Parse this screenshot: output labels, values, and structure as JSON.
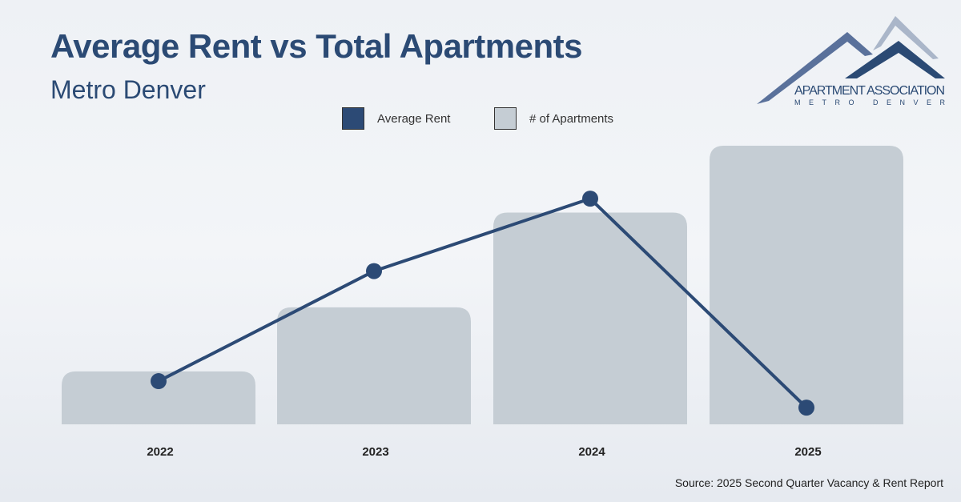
{
  "chart_data": {
    "type": "bar+line",
    "title": "Average Rent vs Total Apartments",
    "subtitle": "Metro Denver",
    "categories": [
      "2022",
      "2023",
      "2024",
      "2025"
    ],
    "series": [
      {
        "name": "# of Apartments",
        "type": "bar",
        "values": [
          19,
          42,
          76,
          100
        ],
        "color": "#c5cdd4"
      },
      {
        "name": "Average Rent",
        "type": "line",
        "values": [
          15.5,
          55,
          81,
          6
        ],
        "color": "#2c4a75"
      }
    ],
    "note": "values are relative (index, max=100); no axis scale shown",
    "ylim": [
      0,
      100
    ],
    "grid": false,
    "legend_position": "top-center"
  },
  "legend": {
    "rent_label": "Average Rent",
    "apts_label": "# of Apartments"
  },
  "logo": {
    "line1": "APARTMENT ASSOCIATION",
    "line2": "METRO DENVER"
  },
  "source": "Source: 2025 Second Quarter Vacancy & Rent Report"
}
